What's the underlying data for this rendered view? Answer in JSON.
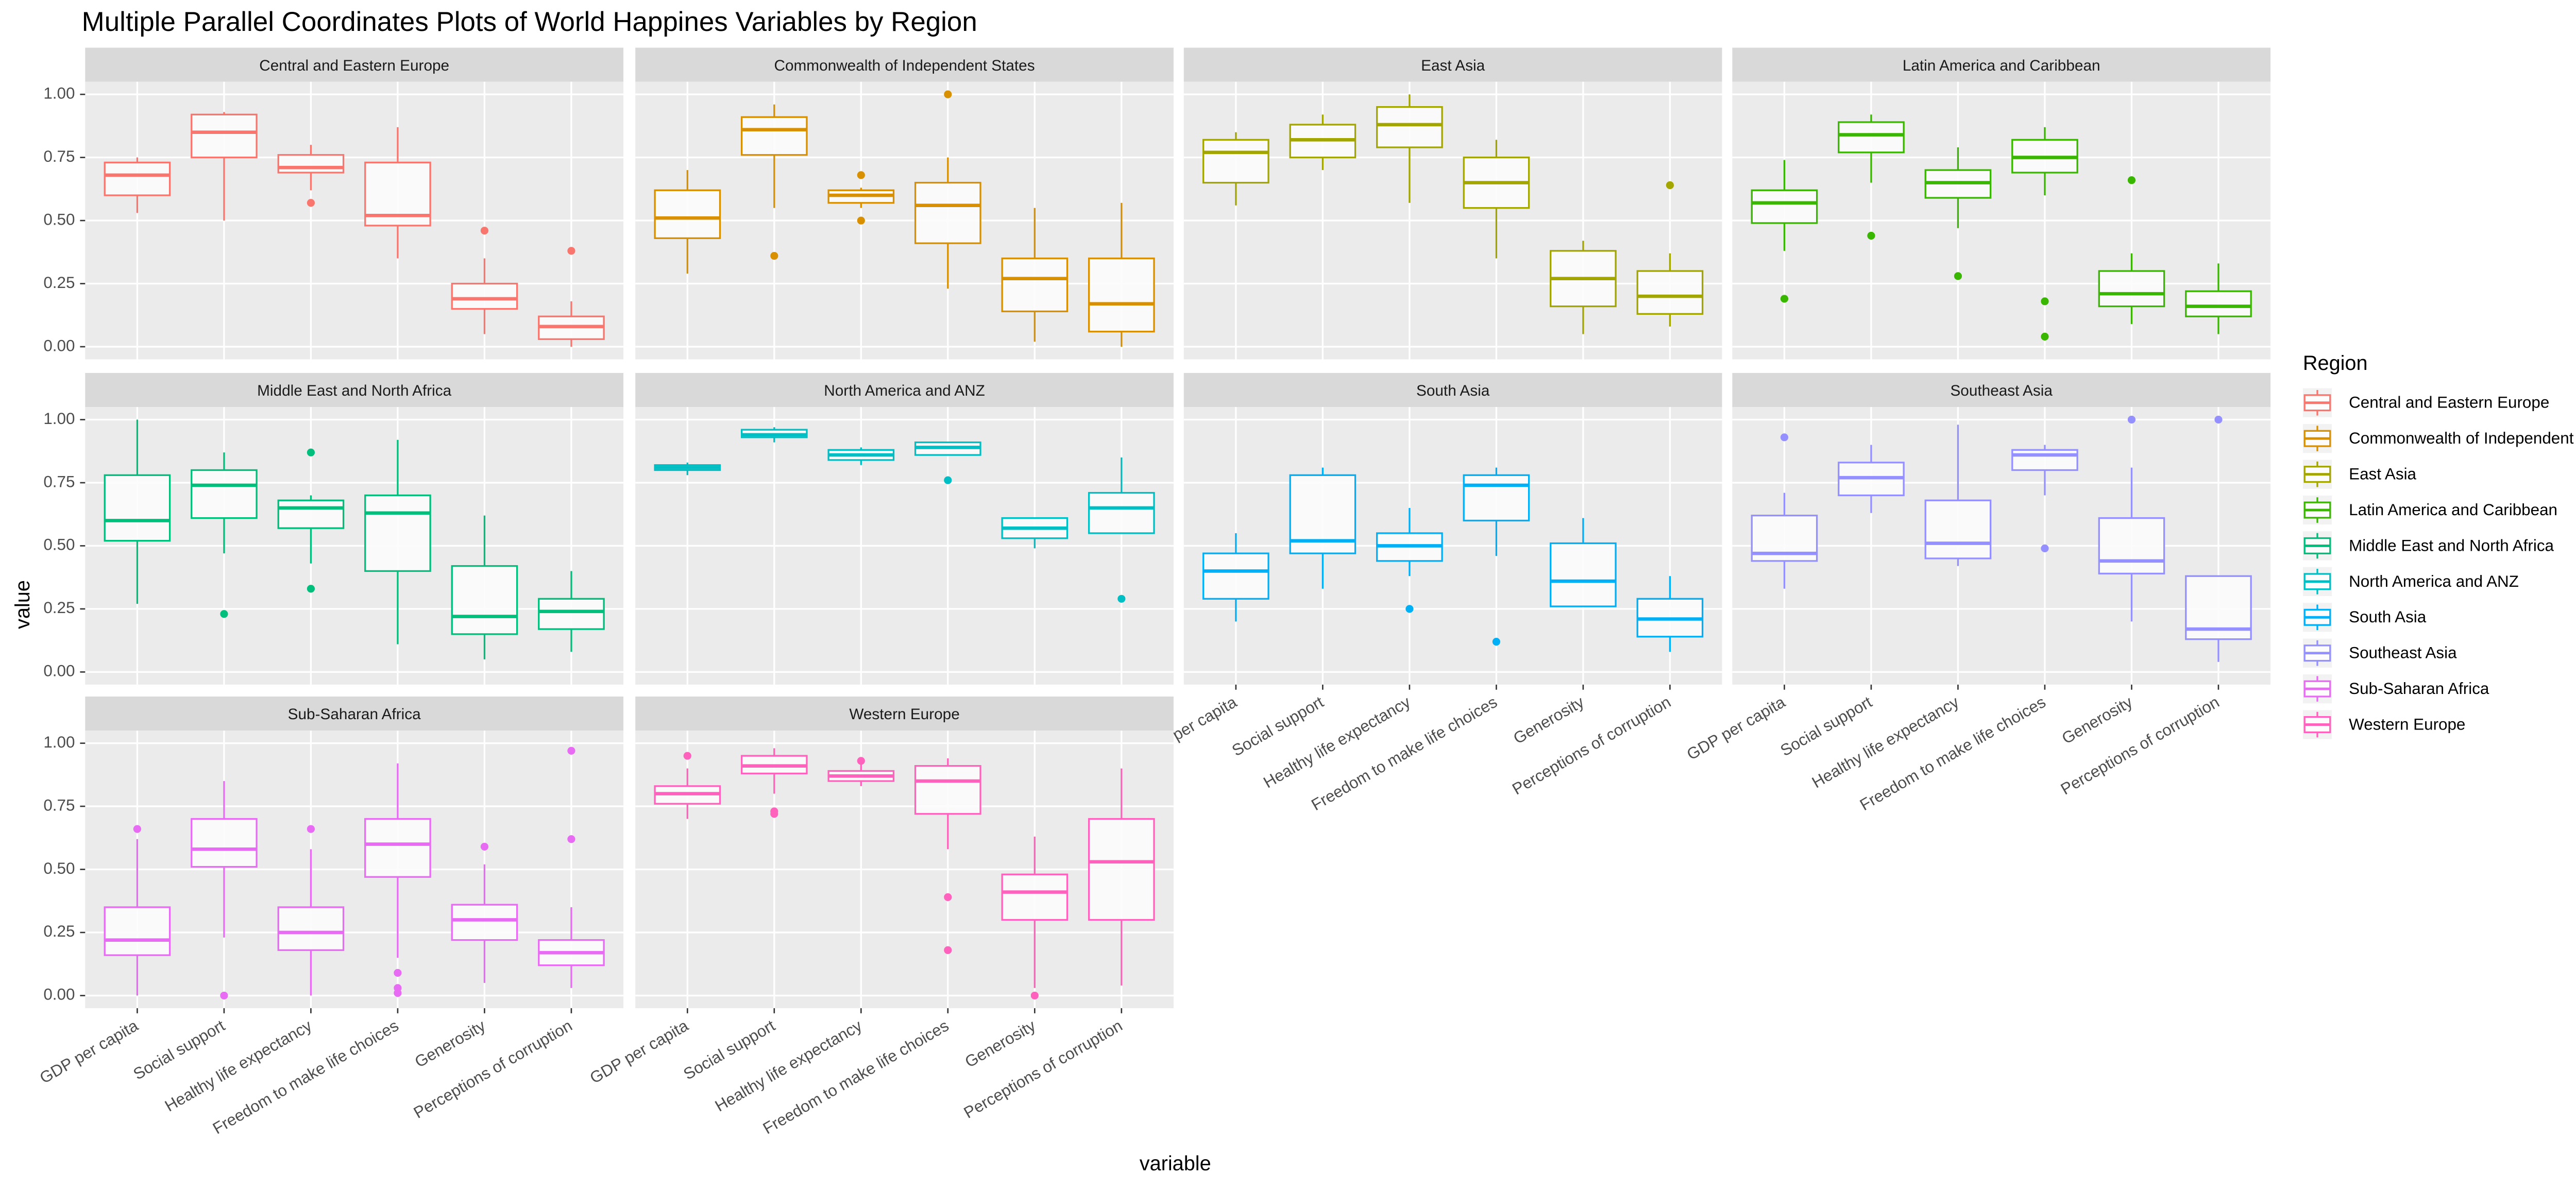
{
  "chart_data": {
    "type": "box",
    "title": "Multiple Parallel Coordinates Plots of World Happines Variables by Region",
    "xlabel": "variable",
    "ylabel": "value",
    "legend_title": "Region",
    "categories": [
      "GDP per capita",
      "Social support",
      "Healthy life expectancy",
      "Freedom to make life choices",
      "Generosity",
      "Perceptions of corruption"
    ],
    "ylim": [
      -0.05,
      1.05
    ],
    "yticks": [
      {
        "value": 0,
        "label": "0.00"
      },
      {
        "value": 0.25,
        "label": "0.25"
      },
      {
        "value": 0.5,
        "label": "0.50"
      },
      {
        "value": 0.75,
        "label": "0.75"
      },
      {
        "value": 1,
        "label": "1.00"
      }
    ],
    "grid": true,
    "legend": "right",
    "panels": [
      {
        "name": "Central and Eastern Europe",
        "color": "#F8766D",
        "boxes": [
          {
            "low": 0.53,
            "q1": 0.6,
            "median": 0.68,
            "q3": 0.73,
            "high": 0.75
          },
          {
            "low": 0.5,
            "q1": 0.75,
            "median": 0.85,
            "q3": 0.92,
            "high": 0.93
          },
          {
            "low": 0.62,
            "q1": 0.69,
            "median": 0.71,
            "q3": 0.76,
            "high": 0.8,
            "outliers": [
              0.57
            ]
          },
          {
            "low": 0.35,
            "q1": 0.48,
            "median": 0.52,
            "q3": 0.73,
            "high": 0.87
          },
          {
            "low": 0.05,
            "q1": 0.15,
            "median": 0.19,
            "q3": 0.25,
            "high": 0.35,
            "outliers": [
              0.46
            ]
          },
          {
            "low": 0.0,
            "q1": 0.03,
            "median": 0.08,
            "q3": 0.12,
            "high": 0.18,
            "outliers": [
              0.38
            ]
          }
        ]
      },
      {
        "name": "Commonwealth of Independent States",
        "color": "#D89000",
        "boxes": [
          {
            "low": 0.29,
            "q1": 0.43,
            "median": 0.51,
            "q3": 0.62,
            "high": 0.7
          },
          {
            "low": 0.55,
            "q1": 0.76,
            "median": 0.86,
            "q3": 0.91,
            "high": 0.96,
            "outliers": [
              0.36
            ]
          },
          {
            "low": 0.55,
            "q1": 0.57,
            "median": 0.6,
            "q3": 0.62,
            "high": 0.63,
            "outliers": [
              0.68,
              0.5
            ]
          },
          {
            "low": 0.23,
            "q1": 0.41,
            "median": 0.56,
            "q3": 0.65,
            "high": 0.75,
            "outliers": [
              1.0
            ]
          },
          {
            "low": 0.02,
            "q1": 0.14,
            "median": 0.27,
            "q3": 0.35,
            "high": 0.55
          },
          {
            "low": 0.0,
            "q1": 0.06,
            "median": 0.17,
            "q3": 0.35,
            "high": 0.57
          }
        ]
      },
      {
        "name": "East Asia",
        "color": "#A3A500",
        "boxes": [
          {
            "low": 0.56,
            "q1": 0.65,
            "median": 0.77,
            "q3": 0.82,
            "high": 0.85
          },
          {
            "low": 0.7,
            "q1": 0.75,
            "median": 0.82,
            "q3": 0.88,
            "high": 0.92
          },
          {
            "low": 0.57,
            "q1": 0.79,
            "median": 0.88,
            "q3": 0.95,
            "high": 1.0
          },
          {
            "low": 0.35,
            "q1": 0.55,
            "median": 0.65,
            "q3": 0.75,
            "high": 0.82
          },
          {
            "low": 0.05,
            "q1": 0.16,
            "median": 0.27,
            "q3": 0.38,
            "high": 0.42
          },
          {
            "low": 0.08,
            "q1": 0.13,
            "median": 0.2,
            "q3": 0.3,
            "high": 0.37,
            "outliers": [
              0.64
            ]
          }
        ]
      },
      {
        "name": "Latin America and Caribbean",
        "color": "#39B600",
        "boxes": [
          {
            "low": 0.38,
            "q1": 0.49,
            "median": 0.57,
            "q3": 0.62,
            "high": 0.74,
            "outliers": [
              0.19
            ]
          },
          {
            "low": 0.65,
            "q1": 0.77,
            "median": 0.84,
            "q3": 0.89,
            "high": 0.92,
            "outliers": [
              0.44
            ]
          },
          {
            "low": 0.47,
            "q1": 0.59,
            "median": 0.65,
            "q3": 0.7,
            "high": 0.79,
            "outliers": [
              0.28
            ]
          },
          {
            "low": 0.6,
            "q1": 0.69,
            "median": 0.75,
            "q3": 0.82,
            "high": 0.87,
            "outliers": [
              0.18,
              0.04
            ]
          },
          {
            "low": 0.09,
            "q1": 0.16,
            "median": 0.21,
            "q3": 0.3,
            "high": 0.37,
            "outliers": [
              0.66
            ]
          },
          {
            "low": 0.05,
            "q1": 0.12,
            "median": 0.16,
            "q3": 0.22,
            "high": 0.33
          }
        ]
      },
      {
        "name": "Middle East and North Africa",
        "color": "#00BF7D",
        "boxes": [
          {
            "low": 0.27,
            "q1": 0.52,
            "median": 0.6,
            "q3": 0.78,
            "high": 1.0
          },
          {
            "low": 0.47,
            "q1": 0.61,
            "median": 0.74,
            "q3": 0.8,
            "high": 0.87,
            "outliers": [
              0.23
            ]
          },
          {
            "low": 0.43,
            "q1": 0.57,
            "median": 0.65,
            "q3": 0.68,
            "high": 0.7,
            "outliers": [
              0.87,
              0.33
            ]
          },
          {
            "low": 0.11,
            "q1": 0.4,
            "median": 0.63,
            "q3": 0.7,
            "high": 0.92
          },
          {
            "low": 0.05,
            "q1": 0.15,
            "median": 0.22,
            "q3": 0.42,
            "high": 0.62
          },
          {
            "low": 0.08,
            "q1": 0.17,
            "median": 0.24,
            "q3": 0.29,
            "high": 0.4
          }
        ]
      },
      {
        "name": "North America and ANZ",
        "color": "#00BFC4",
        "boxes": [
          {
            "low": 0.78,
            "q1": 0.8,
            "median": 0.81,
            "q3": 0.82,
            "high": 0.83
          },
          {
            "low": 0.91,
            "q1": 0.93,
            "median": 0.94,
            "q3": 0.96,
            "high": 0.97
          },
          {
            "low": 0.82,
            "q1": 0.84,
            "median": 0.86,
            "q3": 0.88,
            "high": 0.89
          },
          {
            "low": 0.86,
            "q1": 0.86,
            "median": 0.89,
            "q3": 0.91,
            "high": 0.91,
            "outliers": [
              0.76
            ]
          },
          {
            "low": 0.49,
            "q1": 0.53,
            "median": 0.57,
            "q3": 0.61,
            "high": 0.61
          },
          {
            "low": 0.55,
            "q1": 0.55,
            "median": 0.65,
            "q3": 0.71,
            "high": 0.85,
            "outliers": [
              0.29
            ]
          }
        ]
      },
      {
        "name": "South Asia",
        "color": "#00B0F6",
        "boxes": [
          {
            "low": 0.2,
            "q1": 0.29,
            "median": 0.4,
            "q3": 0.47,
            "high": 0.55
          },
          {
            "low": 0.33,
            "q1": 0.47,
            "median": 0.52,
            "q3": 0.78,
            "high": 0.81
          },
          {
            "low": 0.38,
            "q1": 0.44,
            "median": 0.5,
            "q3": 0.55,
            "high": 0.65,
            "outliers": [
              0.25
            ]
          },
          {
            "low": 0.46,
            "q1": 0.6,
            "median": 0.74,
            "q3": 0.78,
            "high": 0.81,
            "outliers": [
              0.12
            ]
          },
          {
            "low": 0.26,
            "q1": 0.26,
            "median": 0.36,
            "q3": 0.51,
            "high": 0.61
          },
          {
            "low": 0.08,
            "q1": 0.14,
            "median": 0.21,
            "q3": 0.29,
            "high": 0.38
          }
        ]
      },
      {
        "name": "Southeast Asia",
        "color": "#9590FF",
        "boxes": [
          {
            "low": 0.33,
            "q1": 0.44,
            "median": 0.47,
            "q3": 0.62,
            "high": 0.71,
            "outliers": [
              0.93
            ]
          },
          {
            "low": 0.63,
            "q1": 0.7,
            "median": 0.77,
            "q3": 0.83,
            "high": 0.9
          },
          {
            "low": 0.42,
            "q1": 0.45,
            "median": 0.51,
            "q3": 0.68,
            "high": 0.98
          },
          {
            "low": 0.7,
            "q1": 0.8,
            "median": 0.86,
            "q3": 0.88,
            "high": 0.9,
            "outliers": [
              0.49
            ]
          },
          {
            "low": 0.2,
            "q1": 0.39,
            "median": 0.44,
            "q3": 0.61,
            "high": 0.81,
            "outliers": [
              1.0
            ]
          },
          {
            "low": 0.04,
            "q1": 0.13,
            "median": 0.17,
            "q3": 0.38,
            "high": 0.38,
            "outliers": [
              1.0
            ]
          }
        ]
      },
      {
        "name": "Sub-Saharan Africa",
        "color": "#E76BF3",
        "boxes": [
          {
            "low": 0.0,
            "q1": 0.16,
            "median": 0.22,
            "q3": 0.35,
            "high": 0.62,
            "outliers": [
              0.66
            ]
          },
          {
            "low": 0.23,
            "q1": 0.51,
            "median": 0.58,
            "q3": 0.7,
            "high": 0.85,
            "outliers": [
              0.0
            ]
          },
          {
            "low": 0.0,
            "q1": 0.18,
            "median": 0.25,
            "q3": 0.35,
            "high": 0.58,
            "outliers": [
              0.66
            ]
          },
          {
            "low": 0.15,
            "q1": 0.47,
            "median": 0.6,
            "q3": 0.7,
            "high": 0.92,
            "outliers": [
              0.09,
              0.03,
              0.01
            ]
          },
          {
            "low": 0.05,
            "q1": 0.22,
            "median": 0.3,
            "q3": 0.36,
            "high": 0.52,
            "outliers": [
              0.59
            ]
          },
          {
            "low": 0.03,
            "q1": 0.12,
            "median": 0.17,
            "q3": 0.22,
            "high": 0.35,
            "outliers": [
              0.62,
              0.97
            ]
          }
        ]
      },
      {
        "name": "Western Europe",
        "color": "#FF62BC",
        "boxes": [
          {
            "low": 0.7,
            "q1": 0.76,
            "median": 0.8,
            "q3": 0.83,
            "high": 0.9,
            "outliers": [
              0.95
            ]
          },
          {
            "low": 0.8,
            "q1": 0.88,
            "median": 0.91,
            "q3": 0.95,
            "high": 0.98,
            "outliers": [
              0.73,
              0.72
            ]
          },
          {
            "low": 0.83,
            "q1": 0.85,
            "median": 0.87,
            "q3": 0.89,
            "high": 0.93,
            "outliers": [
              0.93
            ]
          },
          {
            "low": 0.58,
            "q1": 0.72,
            "median": 0.85,
            "q3": 0.91,
            "high": 0.94,
            "outliers": [
              0.39,
              0.18
            ]
          },
          {
            "low": 0.03,
            "q1": 0.3,
            "median": 0.41,
            "q3": 0.48,
            "high": 0.63,
            "outliers": [
              0.0
            ]
          },
          {
            "low": 0.04,
            "q1": 0.3,
            "median": 0.53,
            "q3": 0.7,
            "high": 0.9
          }
        ]
      }
    ]
  }
}
